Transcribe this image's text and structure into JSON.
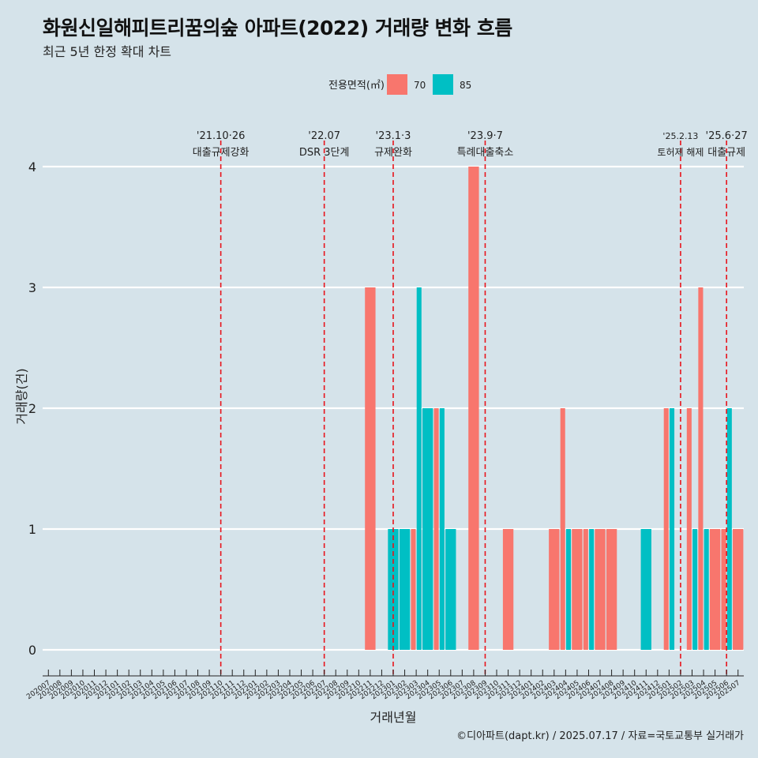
{
  "title": "화원신일해피트리꿈의숲 아파트(2022) 거래량 변화 흐름",
  "subtitle": "최근 5년 한정 확대 차트",
  "caption": "©디아파트(dapt.kr) / 2025.07.17 / 자료=국토교통부 실거래가",
  "colors": {
    "background": "#d5e3ea",
    "area70": "#f8766d",
    "area85": "#00bfc4",
    "eventLine": "#e8141c"
  },
  "chart_data": {
    "type": "bar",
    "xlabel": "거래년월",
    "ylabel": "거래량(건)",
    "ylim": [
      0,
      4
    ],
    "yticks": [
      0,
      1,
      2,
      3,
      4
    ],
    "grid": "horizontal",
    "legend": {
      "title": "전용면적(㎡)",
      "placement": "top",
      "entries": [
        "70",
        "85"
      ]
    },
    "categories": [
      "202007",
      "202008",
      "202009",
      "202010",
      "202011",
      "202012",
      "202101",
      "202102",
      "202103",
      "202104",
      "202105",
      "202106",
      "202107",
      "202108",
      "202109",
      "202110",
      "202111",
      "202112",
      "202201",
      "202202",
      "202203",
      "202204",
      "202205",
      "202206",
      "202207",
      "202208",
      "202209",
      "202210",
      "202211",
      "202212",
      "202301",
      "202302",
      "202303",
      "202304",
      "202305",
      "202306",
      "202307",
      "202308",
      "202309",
      "202310",
      "202311",
      "202312",
      "202401",
      "202402",
      "202403",
      "202404",
      "202405",
      "202406",
      "202407",
      "202408",
      "202409",
      "202410",
      "202411",
      "202412",
      "202501",
      "202502",
      "202503",
      "202504",
      "202505",
      "202506",
      "202507"
    ],
    "series": [
      {
        "name": "70",
        "color": "#f8766d",
        "values": [
          0,
          0,
          0,
          0,
          0,
          0,
          0,
          0,
          0,
          0,
          0,
          0,
          0,
          0,
          0,
          0,
          0,
          0,
          0,
          0,
          0,
          0,
          0,
          0,
          0,
          0,
          0,
          0,
          3,
          0,
          0,
          0,
          1,
          0,
          2,
          0,
          0,
          4,
          0,
          0,
          1,
          0,
          0,
          0,
          1,
          2,
          1,
          1,
          1,
          1,
          0,
          0,
          0,
          0,
          2,
          0,
          2,
          3,
          1,
          1,
          1
        ]
      },
      {
        "name": "85",
        "color": "#00bfc4",
        "values": [
          0,
          0,
          0,
          0,
          0,
          0,
          0,
          0,
          0,
          0,
          0,
          0,
          0,
          0,
          0,
          0,
          0,
          0,
          0,
          0,
          0,
          0,
          0,
          0,
          0,
          0,
          0,
          0,
          0,
          0,
          1,
          1,
          3,
          2,
          2,
          1,
          0,
          0,
          0,
          0,
          0,
          0,
          0,
          0,
          0,
          1,
          0,
          1,
          0,
          0,
          0,
          0,
          1,
          0,
          2,
          0,
          1,
          1,
          0,
          2,
          0
        ]
      }
    ],
    "events": [
      {
        "category": "202110",
        "date": "'21.10·26",
        "label": "대출규제강화"
      },
      {
        "category": "202207",
        "date": "'22.07",
        "label": "DSR 3단계"
      },
      {
        "category": "202301",
        "date": "'23.1·3",
        "label": "규제완화"
      },
      {
        "category": "202309",
        "date": "'23.9·7",
        "label": "특례대출축소"
      },
      {
        "category": "202502",
        "date": "'25.2.13",
        "label": "토허제 해제"
      },
      {
        "category": "202506",
        "date": "'25.6·27",
        "label": "대출규제"
      }
    ]
  }
}
